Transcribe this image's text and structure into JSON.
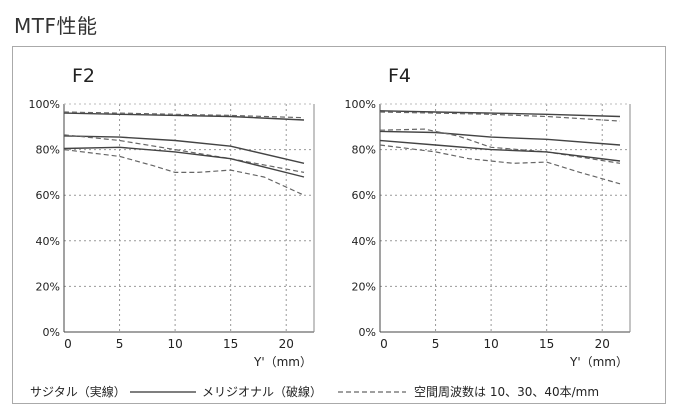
{
  "page_title": "MTF性能",
  "legend": {
    "sagittal_label": "サジタル（実線）",
    "meridional_label": "メリジオナル（破線）",
    "frequency_note": "空間周波数は 10、30、40本/mm"
  },
  "chart_data": [
    {
      "type": "line",
      "title": "F2",
      "xlabel": "Y'（mm）",
      "ylabel": "",
      "xlim": [
        0,
        22.5
      ],
      "ylim": [
        0,
        100
      ],
      "x_ticks": [
        "0",
        "5",
        "10",
        "15",
        "20"
      ],
      "y_ticks": [
        "0%",
        "20%",
        "40%",
        "60%",
        "80%",
        "100%"
      ],
      "grid": true,
      "series": [
        {
          "style": "solid",
          "x": [
            0,
            5,
            10,
            15,
            21.6
          ],
          "values": [
            96,
            95.5,
            95,
            94.5,
            93
          ]
        },
        {
          "style": "dashed",
          "x": [
            0,
            5,
            10,
            15,
            21.6
          ],
          "values": [
            96.5,
            96,
            95.5,
            95,
            94
          ]
        },
        {
          "style": "solid",
          "x": [
            0,
            5,
            10,
            15,
            21.6
          ],
          "values": [
            86,
            85.5,
            84,
            81.5,
            74
          ]
        },
        {
          "style": "dashed",
          "x": [
            0,
            5,
            10,
            15,
            21.6
          ],
          "values": [
            86.5,
            84,
            80,
            76,
            70
          ]
        },
        {
          "style": "solid",
          "x": [
            0,
            5,
            10,
            15,
            21.6
          ],
          "values": [
            80.5,
            81,
            79,
            76,
            68
          ]
        },
        {
          "style": "dashed",
          "x": [
            0,
            5,
            8,
            10,
            12,
            15,
            18,
            21.6
          ],
          "values": [
            80,
            77,
            73,
            70,
            70,
            71,
            68,
            60
          ]
        }
      ]
    },
    {
      "type": "line",
      "title": "F4",
      "xlabel": "Y'（mm）",
      "ylabel": "",
      "xlim": [
        0,
        22.5
      ],
      "ylim": [
        0,
        100
      ],
      "x_ticks": [
        "0",
        "5",
        "10",
        "15",
        "20"
      ],
      "y_ticks": [
        "0%",
        "20%",
        "40%",
        "60%",
        "80%",
        "100%"
      ],
      "grid": true,
      "series": [
        {
          "style": "solid",
          "x": [
            0,
            5,
            10,
            15,
            21.6
          ],
          "values": [
            97,
            96.5,
            96,
            95.5,
            94.5
          ]
        },
        {
          "style": "dashed",
          "x": [
            0,
            5,
            10,
            15,
            21.6
          ],
          "values": [
            96.5,
            96,
            95.5,
            94.5,
            92.5
          ]
        },
        {
          "style": "solid",
          "x": [
            0,
            5,
            10,
            15,
            21.6
          ],
          "values": [
            88,
            87.5,
            85.5,
            84.5,
            82
          ]
        },
        {
          "style": "dashed",
          "x": [
            0,
            4,
            7,
            10,
            15,
            21.6
          ],
          "values": [
            88.5,
            89,
            86,
            81,
            79,
            74
          ]
        },
        {
          "style": "solid",
          "x": [
            0,
            5,
            10,
            15,
            21.6
          ],
          "values": [
            84,
            82,
            80,
            79,
            75
          ]
        },
        {
          "style": "dashed",
          "x": [
            0,
            5,
            8,
            12,
            15,
            18,
            21.6
          ],
          "values": [
            82,
            79,
            76,
            74,
            74.5,
            70,
            65
          ]
        }
      ]
    }
  ]
}
